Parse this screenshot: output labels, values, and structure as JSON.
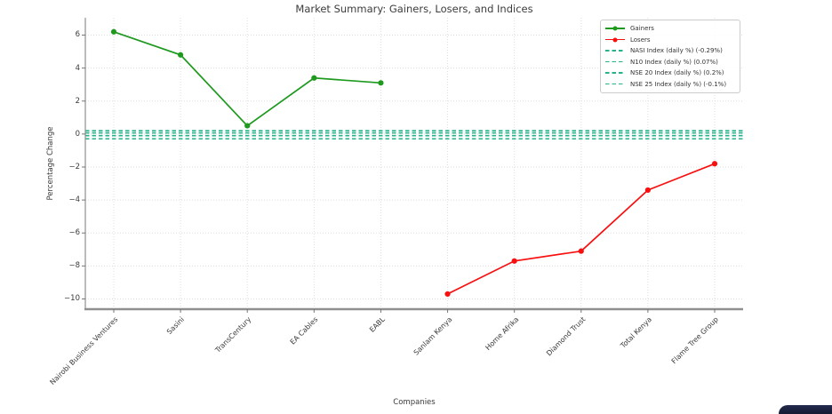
{
  "title": "Market Summary: Gainers, Losers, and Indices",
  "axis": {
    "x_label": "Companies",
    "y_label": "Percentage Change"
  },
  "colors": {
    "gainers": "#1f9a1f",
    "losers": "#f80f0f",
    "index": "#26b28a",
    "grid": "#dedede",
    "spine": "#8f8f8f",
    "tick": "#777777",
    "corner_widget": "#1b2140"
  },
  "legend": {
    "items": [
      {
        "label": "Gainers",
        "swatch": "solid-dot",
        "color_key": "gainers"
      },
      {
        "label": "Losers",
        "swatch": "solid-dot",
        "color_key": "losers"
      },
      {
        "label": "NASI Index (daily %) (-0.29%)",
        "swatch": "dashed",
        "color_key": "index"
      },
      {
        "label": "N10 Index (daily %) (0.07%)",
        "swatch": "dashed",
        "color_key": "index"
      },
      {
        "label": "NSE 20 Index (daily %) (0.2%)",
        "swatch": "dashed",
        "color_key": "index"
      },
      {
        "label": "NSE 25 Index (daily %) (-0.1%)",
        "swatch": "dashed",
        "color_key": "index"
      }
    ]
  },
  "chart_data": {
    "type": "line",
    "title": "Market Summary: Gainers, Losers, and Indices",
    "xlabel": "Companies",
    "ylabel": "Percentage Change",
    "categories": [
      "Nairobi Business Ventures",
      "Sasini",
      "TransCentury",
      "EA Cables",
      "EABL",
      "Sanlam Kenya",
      "Home Afrika",
      "Diamond Trust",
      "Total Kenya",
      "Flame Tree Group"
    ],
    "series": [
      {
        "name": "Gainers",
        "color_key": "gainers",
        "start_index": 0,
        "values": [
          6.2,
          4.8,
          0.5,
          3.4,
          3.1
        ]
      },
      {
        "name": "Losers",
        "color_key": "losers",
        "start_index": 5,
        "values": [
          -9.7,
          -7.7,
          -7.1,
          -3.4,
          -1.8
        ]
      }
    ],
    "index_lines": [
      {
        "label": "NASI Index (daily %) (-0.29%)",
        "value": -0.29
      },
      {
        "label": "N10 Index (daily %) (0.07%)",
        "value": 0.07
      },
      {
        "label": "NSE 20 Index (daily %) (0.2%)",
        "value": 0.2
      },
      {
        "label": "NSE 25 Index (daily %) (-0.1%)",
        "value": -0.1
      }
    ],
    "yticks": [
      6,
      4,
      2,
      0,
      -2,
      -4,
      -6,
      -8,
      -10
    ],
    "ylim": [
      -10.62,
      7.05
    ],
    "grid": true,
    "legend_position": "upper right"
  }
}
